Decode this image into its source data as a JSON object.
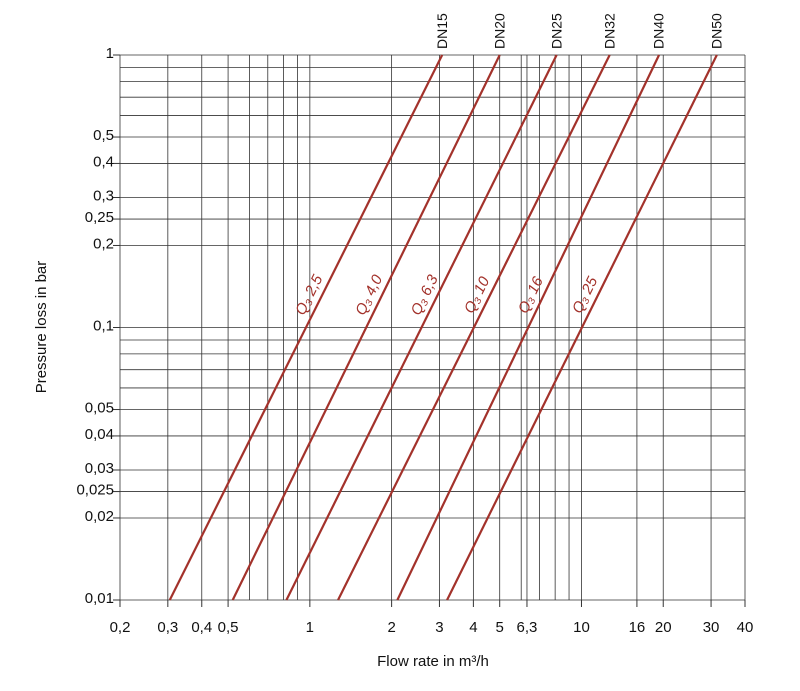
{
  "chart_data": {
    "type": "line",
    "x_label": "Flow rate in m³/h",
    "y_label": "Pressure loss in bar",
    "log_x": true,
    "log_y": true,
    "xlim": [
      0.2,
      40
    ],
    "ylim": [
      0.01,
      1
    ],
    "xticks": [
      {
        "value": 0.2,
        "label": "0,2"
      },
      {
        "value": 0.3,
        "label": "0,3"
      },
      {
        "value": 0.4,
        "label": "0,4"
      },
      {
        "value": 0.5,
        "label": "0,5"
      },
      1,
      2,
      3,
      4,
      5,
      {
        "value": 6.3,
        "label": "6,3"
      },
      10,
      16,
      20,
      30,
      40
    ],
    "yticks": [
      {
        "value": 0.01,
        "label": "0,01"
      },
      {
        "value": 0.02,
        "label": "0,02"
      },
      {
        "value": 0.025,
        "label": "0,025"
      },
      {
        "value": 0.03,
        "label": "0,03"
      },
      {
        "value": 0.04,
        "label": "0,04"
      },
      {
        "value": 0.05,
        "label": "0,05"
      },
      {
        "value": 0.1,
        "label": "0,1"
      },
      {
        "value": 0.2,
        "label": "0,2"
      },
      {
        "value": 0.25,
        "label": "0,25"
      },
      {
        "value": 0.3,
        "label": "0,3"
      },
      {
        "value": 0.4,
        "label": "0,4"
      },
      {
        "value": 0.5,
        "label": "0,5"
      },
      1
    ],
    "grid": true,
    "xgrid": [
      0.2,
      0.3,
      0.4,
      0.5,
      0.6,
      0.7,
      0.8,
      0.9,
      1,
      2,
      3,
      4,
      5,
      6,
      6.3,
      7,
      8,
      9,
      10,
      16,
      20,
      30,
      40
    ],
    "ygrid": [
      0.01,
      0.02,
      0.025,
      0.03,
      0.04,
      0.05,
      0.06,
      0.07,
      0.08,
      0.09,
      0.1,
      0.2,
      0.25,
      0.3,
      0.4,
      0.5,
      0.6,
      0.7,
      0.8,
      0.9,
      1
    ],
    "series": [
      {
        "name": "DN15",
        "annotation": "Q₃ 2,5",
        "color": "#a3322b",
        "x": [
          0.305,
          3.07
        ],
        "values": [
          0.01,
          1
        ]
      },
      {
        "name": "DN20",
        "annotation": "Q₃ 4,0",
        "color": "#a3322b",
        "x": [
          0.52,
          5.0
        ],
        "values": [
          0.01,
          1
        ]
      },
      {
        "name": "DN25",
        "annotation": "Q₃ 6,3",
        "color": "#a3322b",
        "x": [
          0.82,
          8.1
        ],
        "values": [
          0.01,
          1
        ]
      },
      {
        "name": "DN32",
        "annotation": "Q₃ 10",
        "color": "#a3322b",
        "x": [
          1.27,
          12.7
        ],
        "values": [
          0.01,
          1
        ]
      },
      {
        "name": "DN40",
        "annotation": "Q₃ 16",
        "color": "#a3322b",
        "x": [
          2.1,
          19.3
        ],
        "values": [
          0.01,
          1
        ]
      },
      {
        "name": "DN50",
        "annotation": "Q₃ 25",
        "color": "#a3322b",
        "x": [
          3.2,
          31.5
        ],
        "values": [
          0.01,
          1
        ]
      }
    ]
  }
}
